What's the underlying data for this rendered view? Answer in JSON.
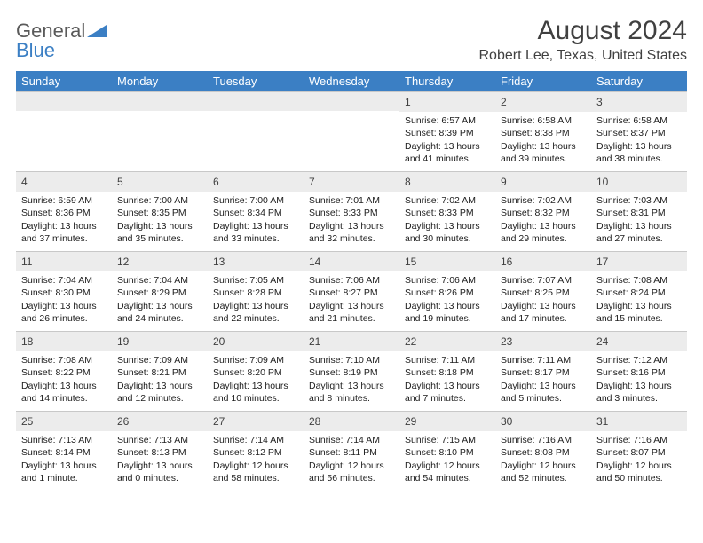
{
  "logo": {
    "word1": "General",
    "word2": "Blue"
  },
  "title": "August 2024",
  "location": "Robert Lee, Texas, United States",
  "header_color": "#3b7fc4",
  "dayband_color": "#ececec",
  "weekdays": [
    "Sunday",
    "Monday",
    "Tuesday",
    "Wednesday",
    "Thursday",
    "Friday",
    "Saturday"
  ],
  "first_weekday_index": 4,
  "days": [
    {
      "n": 1,
      "sr": "6:57 AM",
      "ss": "8:39 PM",
      "dl": "Daylight: 13 hours and 41 minutes."
    },
    {
      "n": 2,
      "sr": "6:58 AM",
      "ss": "8:38 PM",
      "dl": "Daylight: 13 hours and 39 minutes."
    },
    {
      "n": 3,
      "sr": "6:58 AM",
      "ss": "8:37 PM",
      "dl": "Daylight: 13 hours and 38 minutes."
    },
    {
      "n": 4,
      "sr": "6:59 AM",
      "ss": "8:36 PM",
      "dl": "Daylight: 13 hours and 37 minutes."
    },
    {
      "n": 5,
      "sr": "7:00 AM",
      "ss": "8:35 PM",
      "dl": "Daylight: 13 hours and 35 minutes."
    },
    {
      "n": 6,
      "sr": "7:00 AM",
      "ss": "8:34 PM",
      "dl": "Daylight: 13 hours and 33 minutes."
    },
    {
      "n": 7,
      "sr": "7:01 AM",
      "ss": "8:33 PM",
      "dl": "Daylight: 13 hours and 32 minutes."
    },
    {
      "n": 8,
      "sr": "7:02 AM",
      "ss": "8:33 PM",
      "dl": "Daylight: 13 hours and 30 minutes."
    },
    {
      "n": 9,
      "sr": "7:02 AM",
      "ss": "8:32 PM",
      "dl": "Daylight: 13 hours and 29 minutes."
    },
    {
      "n": 10,
      "sr": "7:03 AM",
      "ss": "8:31 PM",
      "dl": "Daylight: 13 hours and 27 minutes."
    },
    {
      "n": 11,
      "sr": "7:04 AM",
      "ss": "8:30 PM",
      "dl": "Daylight: 13 hours and 26 minutes."
    },
    {
      "n": 12,
      "sr": "7:04 AM",
      "ss": "8:29 PM",
      "dl": "Daylight: 13 hours and 24 minutes."
    },
    {
      "n": 13,
      "sr": "7:05 AM",
      "ss": "8:28 PM",
      "dl": "Daylight: 13 hours and 22 minutes."
    },
    {
      "n": 14,
      "sr": "7:06 AM",
      "ss": "8:27 PM",
      "dl": "Daylight: 13 hours and 21 minutes."
    },
    {
      "n": 15,
      "sr": "7:06 AM",
      "ss": "8:26 PM",
      "dl": "Daylight: 13 hours and 19 minutes."
    },
    {
      "n": 16,
      "sr": "7:07 AM",
      "ss": "8:25 PM",
      "dl": "Daylight: 13 hours and 17 minutes."
    },
    {
      "n": 17,
      "sr": "7:08 AM",
      "ss": "8:24 PM",
      "dl": "Daylight: 13 hours and 15 minutes."
    },
    {
      "n": 18,
      "sr": "7:08 AM",
      "ss": "8:22 PM",
      "dl": "Daylight: 13 hours and 14 minutes."
    },
    {
      "n": 19,
      "sr": "7:09 AM",
      "ss": "8:21 PM",
      "dl": "Daylight: 13 hours and 12 minutes."
    },
    {
      "n": 20,
      "sr": "7:09 AM",
      "ss": "8:20 PM",
      "dl": "Daylight: 13 hours and 10 minutes."
    },
    {
      "n": 21,
      "sr": "7:10 AM",
      "ss": "8:19 PM",
      "dl": "Daylight: 13 hours and 8 minutes."
    },
    {
      "n": 22,
      "sr": "7:11 AM",
      "ss": "8:18 PM",
      "dl": "Daylight: 13 hours and 7 minutes."
    },
    {
      "n": 23,
      "sr": "7:11 AM",
      "ss": "8:17 PM",
      "dl": "Daylight: 13 hours and 5 minutes."
    },
    {
      "n": 24,
      "sr": "7:12 AM",
      "ss": "8:16 PM",
      "dl": "Daylight: 13 hours and 3 minutes."
    },
    {
      "n": 25,
      "sr": "7:13 AM",
      "ss": "8:14 PM",
      "dl": "Daylight: 13 hours and 1 minute."
    },
    {
      "n": 26,
      "sr": "7:13 AM",
      "ss": "8:13 PM",
      "dl": "Daylight: 13 hours and 0 minutes."
    },
    {
      "n": 27,
      "sr": "7:14 AM",
      "ss": "8:12 PM",
      "dl": "Daylight: 12 hours and 58 minutes."
    },
    {
      "n": 28,
      "sr": "7:14 AM",
      "ss": "8:11 PM",
      "dl": "Daylight: 12 hours and 56 minutes."
    },
    {
      "n": 29,
      "sr": "7:15 AM",
      "ss": "8:10 PM",
      "dl": "Daylight: 12 hours and 54 minutes."
    },
    {
      "n": 30,
      "sr": "7:16 AM",
      "ss": "8:08 PM",
      "dl": "Daylight: 12 hours and 52 minutes."
    },
    {
      "n": 31,
      "sr": "7:16 AM",
      "ss": "8:07 PM",
      "dl": "Daylight: 12 hours and 50 minutes."
    }
  ],
  "labels": {
    "sunrise": "Sunrise:",
    "sunset": "Sunset:"
  }
}
